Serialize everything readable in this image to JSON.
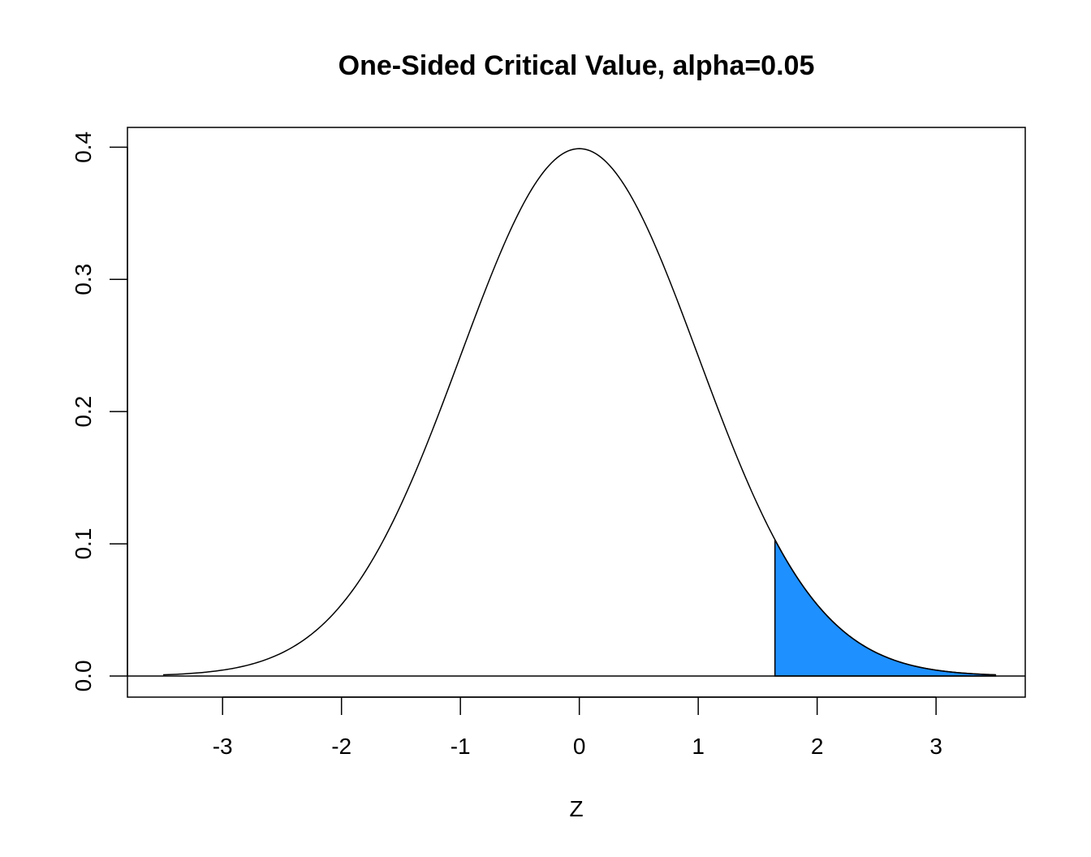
{
  "chart_data": {
    "type": "area",
    "title": "One-Sided Critical Value, alpha=0.05",
    "xlabel": "Z",
    "ylabel": "",
    "xlim": [
      -3.8,
      3.75
    ],
    "ylim": [
      -0.016,
      0.415
    ],
    "x_ticks": [
      -3,
      -2,
      -1,
      0,
      1,
      2,
      3
    ],
    "x_tick_labels": [
      "-3",
      "-2",
      "-1",
      "0",
      "1",
      "2",
      "3"
    ],
    "y_ticks": [
      0.0,
      0.1,
      0.2,
      0.3,
      0.4
    ],
    "y_tick_labels": [
      "0.0",
      "0.1",
      "0.2",
      "0.3",
      "0.4"
    ],
    "grid": false,
    "baseline_y": 0,
    "curve": {
      "name": "",
      "color": "#000000",
      "x": [
        -3.5,
        -3.0,
        -2.5,
        -2.0,
        -1.5,
        -1.0,
        -0.5,
        0.0,
        0.5,
        1.0,
        1.5,
        1.645,
        2.0,
        2.5,
        3.0,
        3.5
      ],
      "y": [
        0.001,
        0.004,
        0.018,
        0.054,
        0.13,
        0.242,
        0.352,
        0.399,
        0.352,
        0.242,
        0.13,
        0.103,
        0.054,
        0.018,
        0.004,
        0.001
      ]
    },
    "shaded_region": {
      "from": 1.645,
      "to": 3.5,
      "color": "#1E90FF"
    }
  }
}
